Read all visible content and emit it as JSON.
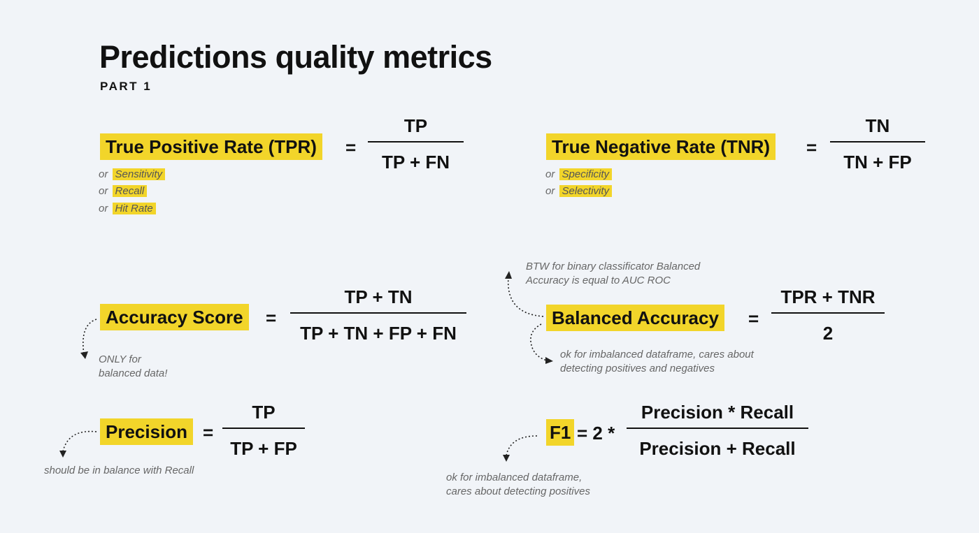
{
  "header": {
    "title": "Predictions quality metrics",
    "subtitle": "PART 1"
  },
  "tpr": {
    "label": "True Positive Rate (TPR)",
    "equals": "=",
    "numerator": "TP",
    "denominator": "TP + FN",
    "aliases": [
      {
        "prefix": "or",
        "name": "Sensitivity"
      },
      {
        "prefix": "or",
        "name": "Recall"
      },
      {
        "prefix": "or",
        "name": "Hit Rate"
      }
    ]
  },
  "tnr": {
    "label": "True Negative Rate (TNR)",
    "equals": "=",
    "numerator": "TN",
    "denominator": "TN + FP",
    "aliases": [
      {
        "prefix": "or",
        "name": "Specificity"
      },
      {
        "prefix": "or",
        "name": "Selectivity"
      }
    ]
  },
  "accuracy": {
    "label": "Accuracy Score",
    "equals": "=",
    "numerator": "TP + TN",
    "denominator": "TP + TN + FP + FN",
    "note": [
      "ONLY for",
      "balanced data!"
    ]
  },
  "balanced": {
    "label": "Balanced Accuracy",
    "equals": "=",
    "numerator": "TPR + TNR",
    "denominator": "2",
    "note_top": [
      "BTW for binary classificator Balanced",
      "Accuracy is equal to AUC ROC"
    ],
    "note_bottom": [
      "ok for imbalanced dataframe, cares about",
      "detecting positives and negatives"
    ]
  },
  "precision": {
    "label": "Precision",
    "equals": "=",
    "numerator": "TP",
    "denominator": "TP + FP",
    "note": "should be in balance with Recall"
  },
  "f1": {
    "label": "F1",
    "equals": "= 2 *",
    "numerator": "Precision * Recall",
    "denominator": "Precision + Recall",
    "note": [
      "ok for imbalanced dataframe,",
      "cares about detecting positives"
    ]
  },
  "colors": {
    "highlight": "#f2d52a",
    "background": "#f1f4f8",
    "text": "#111111",
    "note": "#666666"
  }
}
